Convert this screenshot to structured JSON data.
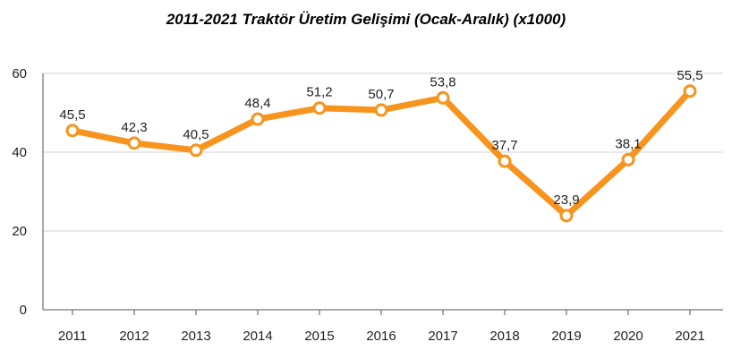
{
  "chart_data": {
    "type": "line",
    "title": "2011-2021 Traktör Üretim Gelişimi (Ocak-Aralık) (x1000)",
    "xlabel": "",
    "ylabel": "",
    "categories": [
      "2011",
      "2012",
      "2013",
      "2014",
      "2015",
      "2016",
      "2017",
      "2018",
      "2019",
      "2020",
      "2021"
    ],
    "series": [
      {
        "values": [
          45.5,
          42.3,
          40.5,
          48.4,
          51.2,
          50.7,
          53.8,
          37.7,
          23.9,
          38.1,
          55.5
        ],
        "labels": [
          "45,5",
          "42,3",
          "40,5",
          "48,4",
          "51,2",
          "50,7",
          "53,8",
          "37,7",
          "23,9",
          "38,1",
          "55,5"
        ],
        "color": "#f7941d"
      }
    ],
    "ylim": [
      0,
      60
    ],
    "yticks": [
      "0",
      "20",
      "40",
      "60"
    ],
    "grid": true,
    "legend": "none"
  }
}
